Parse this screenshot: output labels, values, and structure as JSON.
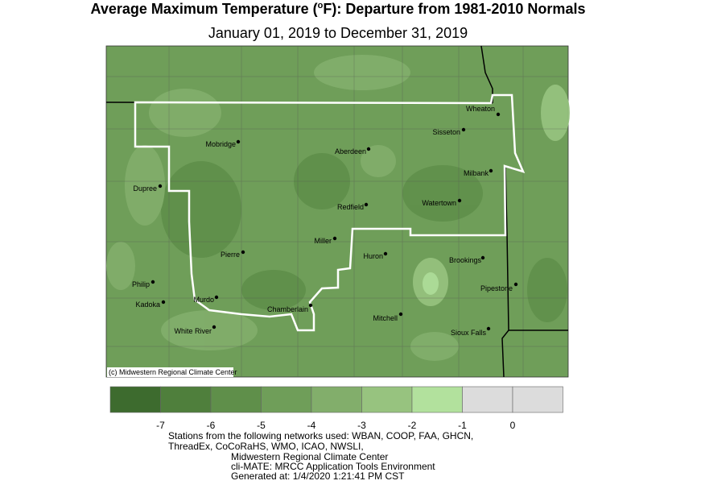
{
  "header": {
    "title_parts": [
      "Average Maximum Temperature (",
      "o",
      "F): Departure from 1981-2010 Normals"
    ],
    "subtitle": "January 01, 2019 to December 31, 2019"
  },
  "map": {
    "copyright": "(c) Midwestern Regional Climate Center",
    "cities": [
      "Wheaton",
      "Sisseton",
      "Mobridge",
      "Aberdeen",
      "Milbank",
      "Dupree",
      "Redfield",
      "Watertown",
      "Miller",
      "Pierre",
      "Huron",
      "Brookings",
      "Philip",
      "Kadoka",
      "Murdo",
      "Pipestone",
      "Chamberlain",
      "Mitchell",
      "White River",
      "Sioux Falls"
    ]
  },
  "legend": {
    "colors": [
      "#3d6b2e",
      "#4f7f3c",
      "#5f8f4a",
      "#6f9e59",
      "#82ae6b",
      "#97c37f",
      "#b2e19d",
      "#dcdcdc",
      "#dcdcdc"
    ],
    "ticks": [
      -7,
      -6,
      -5,
      -4,
      -3,
      -2,
      -1,
      0
    ]
  },
  "footer": {
    "lines": [
      "Stations from the following networks used: WBAN, COOP, FAA, GHCN,",
      "ThreadEx, CoCoRaHS, WMO, ICAO, NWSLI,",
      "Midwestern Regional Climate Center",
      "cli-MATE: MRCC Application Tools Environment",
      "Generated at: 1/4/2020 1:21:41 PM CST"
    ]
  }
}
